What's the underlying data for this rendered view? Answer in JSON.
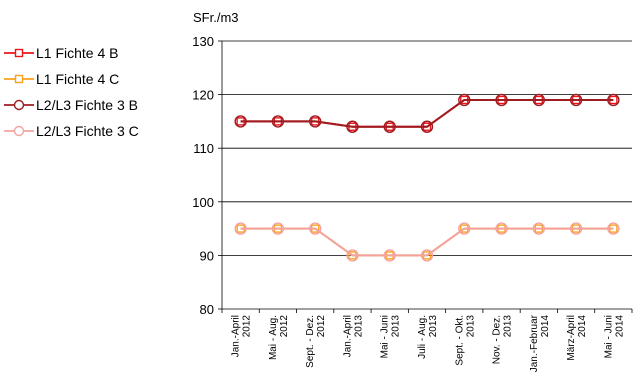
{
  "chart_data": {
    "type": "line",
    "ylabel": "SFr./m3",
    "xlabel": "",
    "ylim": [
      80,
      130
    ],
    "yticks": [
      80,
      90,
      100,
      110,
      120,
      130
    ],
    "grid": "horizontal",
    "legend_position": "left",
    "categories": [
      "Jan.-April 2012",
      "Mai - Aug. 2012",
      "Sept. - Dez. 2012",
      "Jan.-April 2013",
      "Mai - Juni 2013",
      "Juli - Aug. 2013",
      "Sept. - Okt. 2013",
      "Nov. - Dez. 2013",
      "Jan.-Februar 2014",
      "März-April 2014",
      "Mai - Juni 2014"
    ],
    "series": [
      {
        "name": "L1 Fichte 4 B",
        "color": "#e8161b",
        "marker": "square",
        "values": [
          115,
          115,
          115,
          114,
          114,
          114,
          119,
          119,
          119,
          119,
          119
        ]
      },
      {
        "name": "L1 Fichte 4 C",
        "color": "#f7a21b",
        "marker": "square",
        "values": [
          95,
          95,
          95,
          90,
          90,
          90,
          95,
          95,
          95,
          95,
          95
        ]
      },
      {
        "name": "L2/L3 Fichte 3 B",
        "color": "#9e1b20",
        "marker": "circle",
        "values": [
          115,
          115,
          115,
          114,
          114,
          114,
          119,
          119,
          119,
          119,
          119
        ]
      },
      {
        "name": "L2/L3 Fichte 3 C",
        "color": "#f4a3a0",
        "marker": "circle",
        "values": [
          95,
          95,
          95,
          90,
          90,
          90,
          95,
          95,
          95,
          95,
          95
        ]
      }
    ]
  }
}
